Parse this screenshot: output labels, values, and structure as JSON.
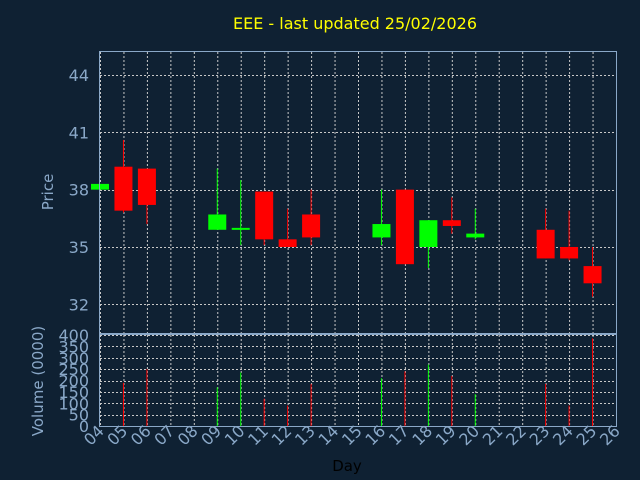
{
  "chart_data": {
    "type": "candlestick",
    "title": "EEE - last updated 25/02/2026",
    "xlabel": "Day",
    "price_ylabel": "Price",
    "volume_ylabel": "Volume (0000)",
    "x_ticks": [
      "04",
      "05",
      "06",
      "07",
      "08",
      "09",
      "10",
      "11",
      "12",
      "13",
      "14",
      "15",
      "16",
      "17",
      "18",
      "19",
      "20",
      "21",
      "22",
      "23",
      "24",
      "25",
      "26"
    ],
    "price_ticks": [
      32,
      35,
      38,
      41,
      44
    ],
    "price_ylim": [
      30.5,
      45.2
    ],
    "volume_ticks": [
      0,
      50,
      100,
      150,
      200,
      250,
      300,
      350,
      400
    ],
    "volume_ylim": [
      0,
      400
    ],
    "grid": true,
    "colors": {
      "up": "#00ff00",
      "down": "#ff0000",
      "background": "#0f2133",
      "title": "#ffff00",
      "axis": "#8aa8c8"
    },
    "candles": [
      {
        "day": "04",
        "open": 38.0,
        "high": 38.3,
        "low": 38.0,
        "close": 38.3,
        "volume": 0
      },
      {
        "day": "05",
        "open": 39.2,
        "high": 40.6,
        "low": 36.8,
        "close": 36.9,
        "volume": 190
      },
      {
        "day": "06",
        "open": 39.1,
        "high": 39.1,
        "low": 36.2,
        "close": 37.2,
        "volume": 250
      },
      {
        "day": "09",
        "open": 35.9,
        "high": 39.1,
        "low": 35.9,
        "close": 36.7,
        "volume": 170
      },
      {
        "day": "10",
        "open": 35.9,
        "high": 38.5,
        "low": 35.1,
        "close": 36.0,
        "volume": 235
      },
      {
        "day": "11",
        "open": 37.9,
        "high": 37.9,
        "low": 35.1,
        "close": 35.4,
        "volume": 120
      },
      {
        "day": "12",
        "open": 35.4,
        "high": 37.0,
        "low": 35.0,
        "close": 35.0,
        "volume": 90
      },
      {
        "day": "13",
        "open": 36.7,
        "high": 38.0,
        "low": 35.1,
        "close": 35.5,
        "volume": 185
      },
      {
        "day": "16",
        "open": 35.5,
        "high": 38.0,
        "low": 35.1,
        "close": 36.2,
        "volume": 210
      },
      {
        "day": "17",
        "open": 38.0,
        "high": 38.0,
        "low": 34.1,
        "close": 34.1,
        "volume": 240
      },
      {
        "day": "18",
        "open": 35.0,
        "high": 36.4,
        "low": 33.9,
        "close": 36.4,
        "volume": 270
      },
      {
        "day": "19",
        "open": 36.4,
        "high": 37.6,
        "low": 35.7,
        "close": 36.1,
        "volume": 220
      },
      {
        "day": "20",
        "open": 35.5,
        "high": 37.0,
        "low": 35.4,
        "close": 35.7,
        "volume": 140
      },
      {
        "day": "23",
        "open": 35.9,
        "high": 37.0,
        "low": 34.4,
        "close": 34.4,
        "volume": 185
      },
      {
        "day": "24",
        "open": 35.0,
        "high": 36.9,
        "low": 34.3,
        "close": 34.4,
        "volume": 90
      },
      {
        "day": "25",
        "open": 34.0,
        "high": 35.0,
        "low": 32.4,
        "close": 33.1,
        "volume": 385
      }
    ]
  }
}
